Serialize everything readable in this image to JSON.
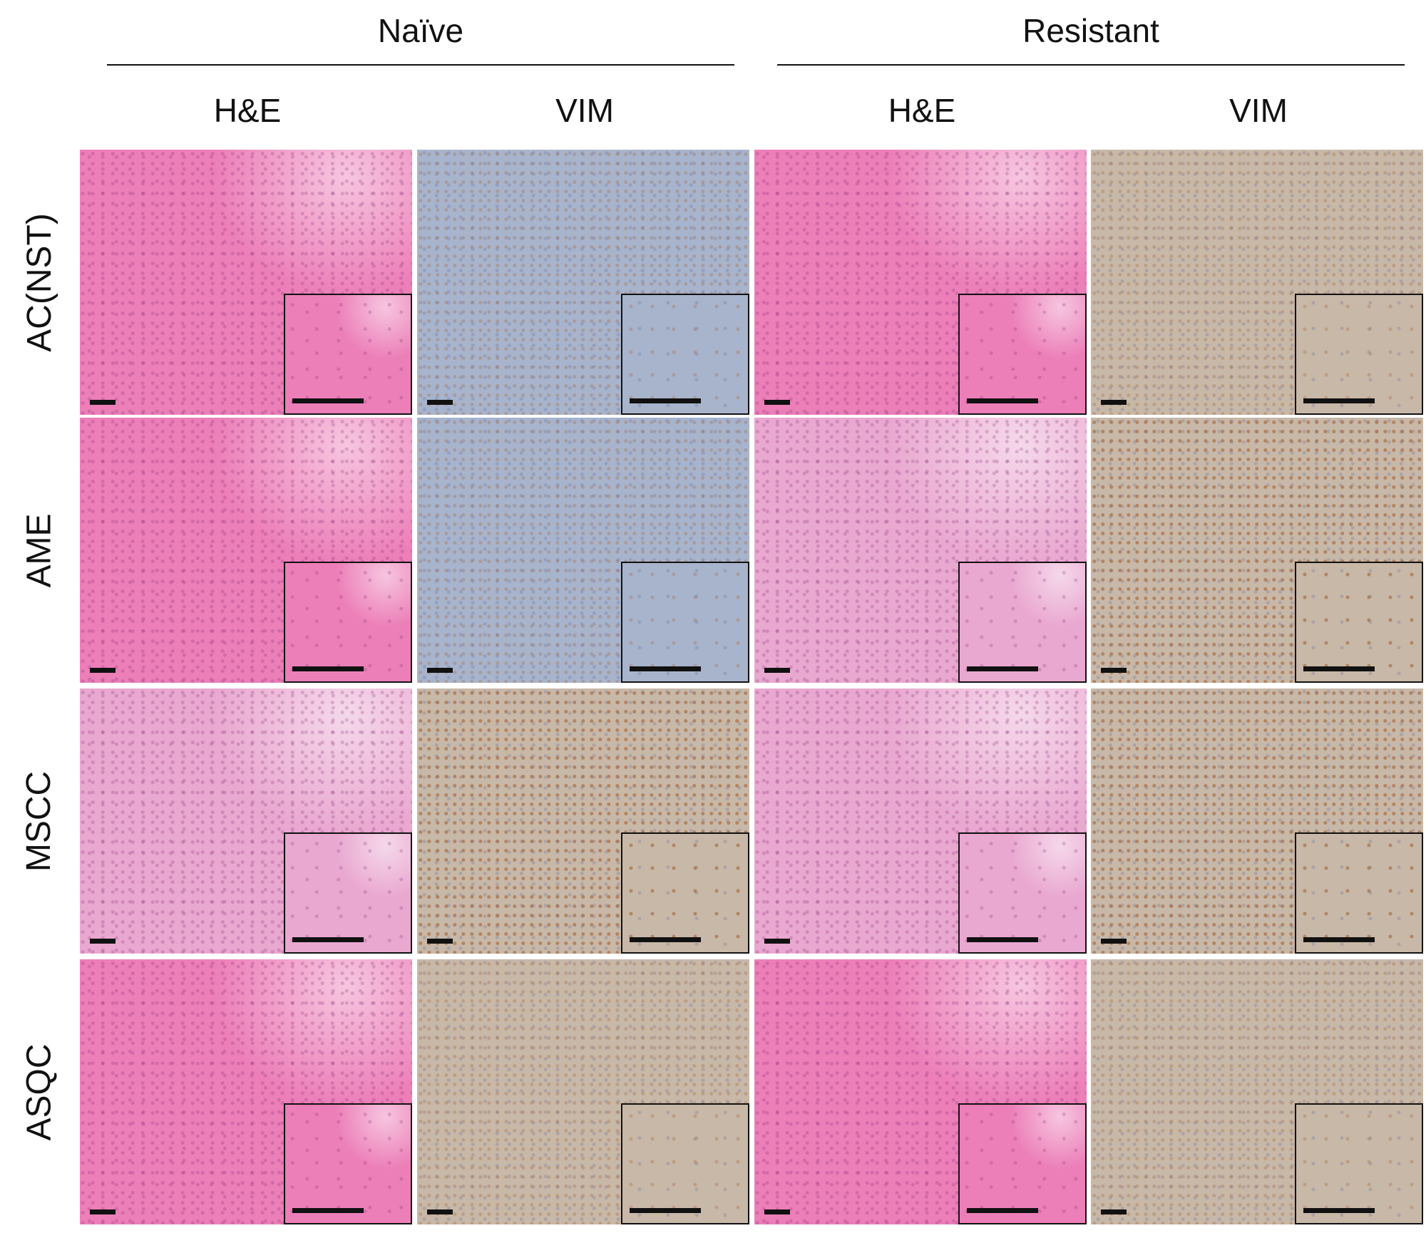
{
  "groups": [
    {
      "label": "Naïve"
    },
    {
      "label": "Resistant"
    }
  ],
  "columns": [
    {
      "label": "H&E",
      "stain": "he"
    },
    {
      "label": "VIM",
      "stain": "vim"
    },
    {
      "label": "H&E",
      "stain": "he"
    },
    {
      "label": "VIM",
      "stain": "vim"
    }
  ],
  "rows": [
    {
      "label": "AC(NST)"
    },
    {
      "label": "AME"
    },
    {
      "label": "MSCC"
    },
    {
      "label": "ASQC"
    }
  ],
  "colors": {
    "he_base": "#ec7fb8",
    "he_pale": "#e9a8d0",
    "vim_base": "#c8b8a8",
    "vim_blue": "#a8b4cc",
    "vim_brown": "#a5622d",
    "line": "#111111"
  }
}
